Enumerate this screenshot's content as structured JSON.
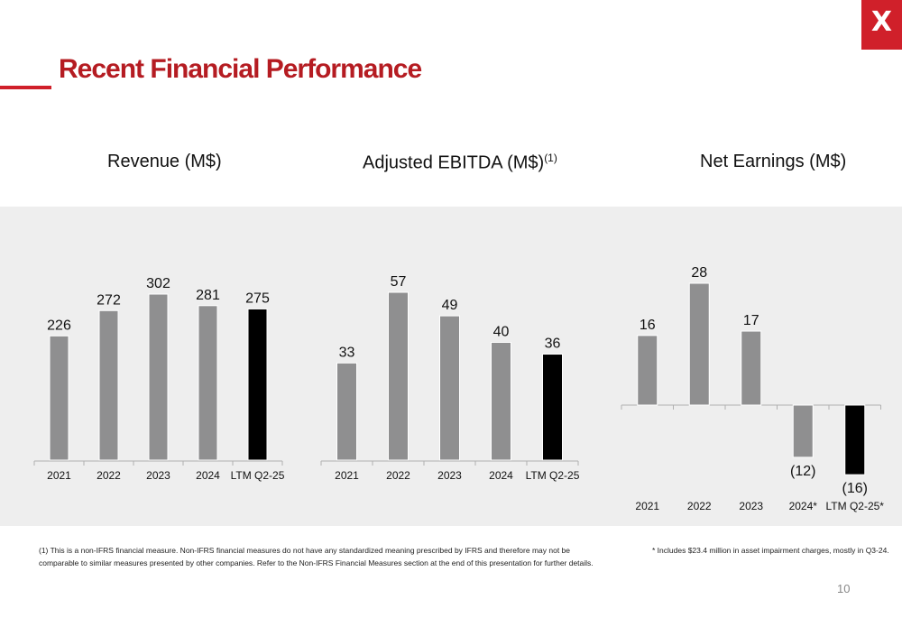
{
  "page": {
    "title": "Recent Financial Performance",
    "logo_text": "X",
    "page_number": "10",
    "colors": {
      "accent": "#d0202a",
      "title": "#b51c22",
      "bar": "#8f8f90",
      "highlight": "#000000",
      "band": "#eeeeee"
    }
  },
  "footnotes": {
    "left_line1": "(1) This is a non-IFRS financial measure. Non-IFRS financial measures do not have any standardized meaning prescribed by IFRS and therefore may not be",
    "left_line2": "comparable to similar measures presented by other companies.  Refer to the Non-IFRS Financial Measures section at the end of this presentation for further details.",
    "right": "* Includes $23.4 million in asset impairment charges, mostly in Q3-24."
  },
  "chart_data": [
    {
      "type": "bar",
      "title": "Revenue (M$)",
      "title_sup": "",
      "categories": [
        "2021",
        "2022",
        "2023",
        "2024",
        "LTM Q2-25"
      ],
      "values": [
        226,
        272,
        302,
        281,
        275
      ],
      "labels": [
        "226",
        "272",
        "302",
        "281",
        "275"
      ],
      "highlight_index": 4
    },
    {
      "type": "bar",
      "title": "Adjusted EBITDA (M$)",
      "title_sup": "(1)",
      "categories": [
        "2021",
        "2022",
        "2023",
        "2024",
        "LTM Q2-25"
      ],
      "values": [
        33,
        57,
        49,
        40,
        36
      ],
      "labels": [
        "33",
        "57",
        "49",
        "40",
        "36"
      ],
      "highlight_index": 4
    },
    {
      "type": "bar",
      "title": "Net Earnings (M$)",
      "title_sup": "",
      "categories": [
        "2021",
        "2022",
        "2023",
        "2024*",
        "LTM Q2-25*"
      ],
      "values": [
        16,
        28,
        17,
        -12,
        -16
      ],
      "labels": [
        "16",
        "28",
        "17",
        "(12)",
        "(16)"
      ],
      "highlight_index": 4
    }
  ]
}
